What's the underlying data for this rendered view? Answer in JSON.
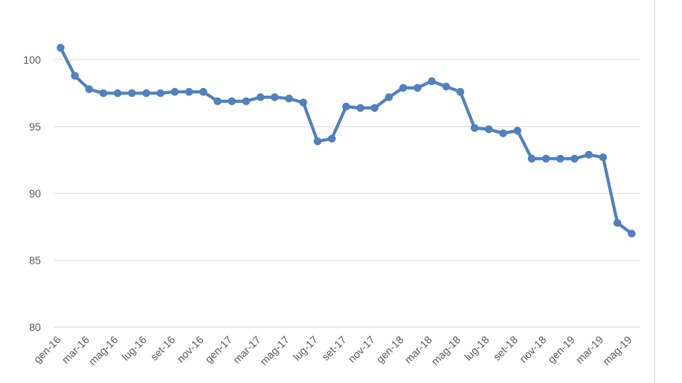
{
  "chart_data": {
    "type": "line",
    "title": "",
    "xlabel": "",
    "ylabel": "",
    "ylim": [
      80,
      100
    ],
    "yticks": [
      80,
      85,
      90,
      95,
      100
    ],
    "grid": true,
    "legend": "none",
    "color": "#4f81bd",
    "x": [
      "gen-16",
      "feb-16",
      "mar-16",
      "apr-16",
      "mag-16",
      "giu-16",
      "lug-16",
      "ago-16",
      "set-16",
      "ott-16",
      "nov-16",
      "dic-16",
      "gen-17",
      "feb-17",
      "mar-17",
      "apr-17",
      "mag-17",
      "giu-17",
      "lug-17",
      "ago-17",
      "set-17",
      "ott-17",
      "nov-17",
      "dic-17",
      "gen-18",
      "feb-18",
      "mar-18",
      "apr-18",
      "mag-18",
      "giu-18",
      "lug-18",
      "ago-18",
      "set-18",
      "ott-18",
      "nov-18",
      "dic-18",
      "gen-19",
      "feb-19",
      "mar-19",
      "apr-19",
      "mag-19"
    ],
    "xticks_shown": [
      "gen-16",
      "mar-16",
      "mag-16",
      "lug-16",
      "set-16",
      "nov-16",
      "gen-17",
      "mar-17",
      "mag-17",
      "lug-17",
      "set-17",
      "nov-17",
      "gen-18",
      "mar-18",
      "mag-18",
      "lug-18",
      "set-18",
      "nov-18",
      "gen-19",
      "mar-19",
      "mag-19"
    ],
    "values": [
      100.9,
      98.8,
      97.8,
      97.5,
      97.5,
      97.5,
      97.5,
      97.5,
      97.6,
      97.6,
      97.6,
      96.9,
      96.9,
      96.9,
      97.2,
      97.2,
      97.1,
      96.8,
      93.9,
      94.1,
      96.5,
      96.4,
      96.4,
      97.2,
      97.9,
      97.9,
      98.4,
      98.0,
      97.6,
      94.9,
      94.8,
      94.5,
      94.7,
      92.6,
      92.6,
      92.6,
      92.6,
      92.9,
      92.7,
      87.8,
      87.0
    ]
  }
}
